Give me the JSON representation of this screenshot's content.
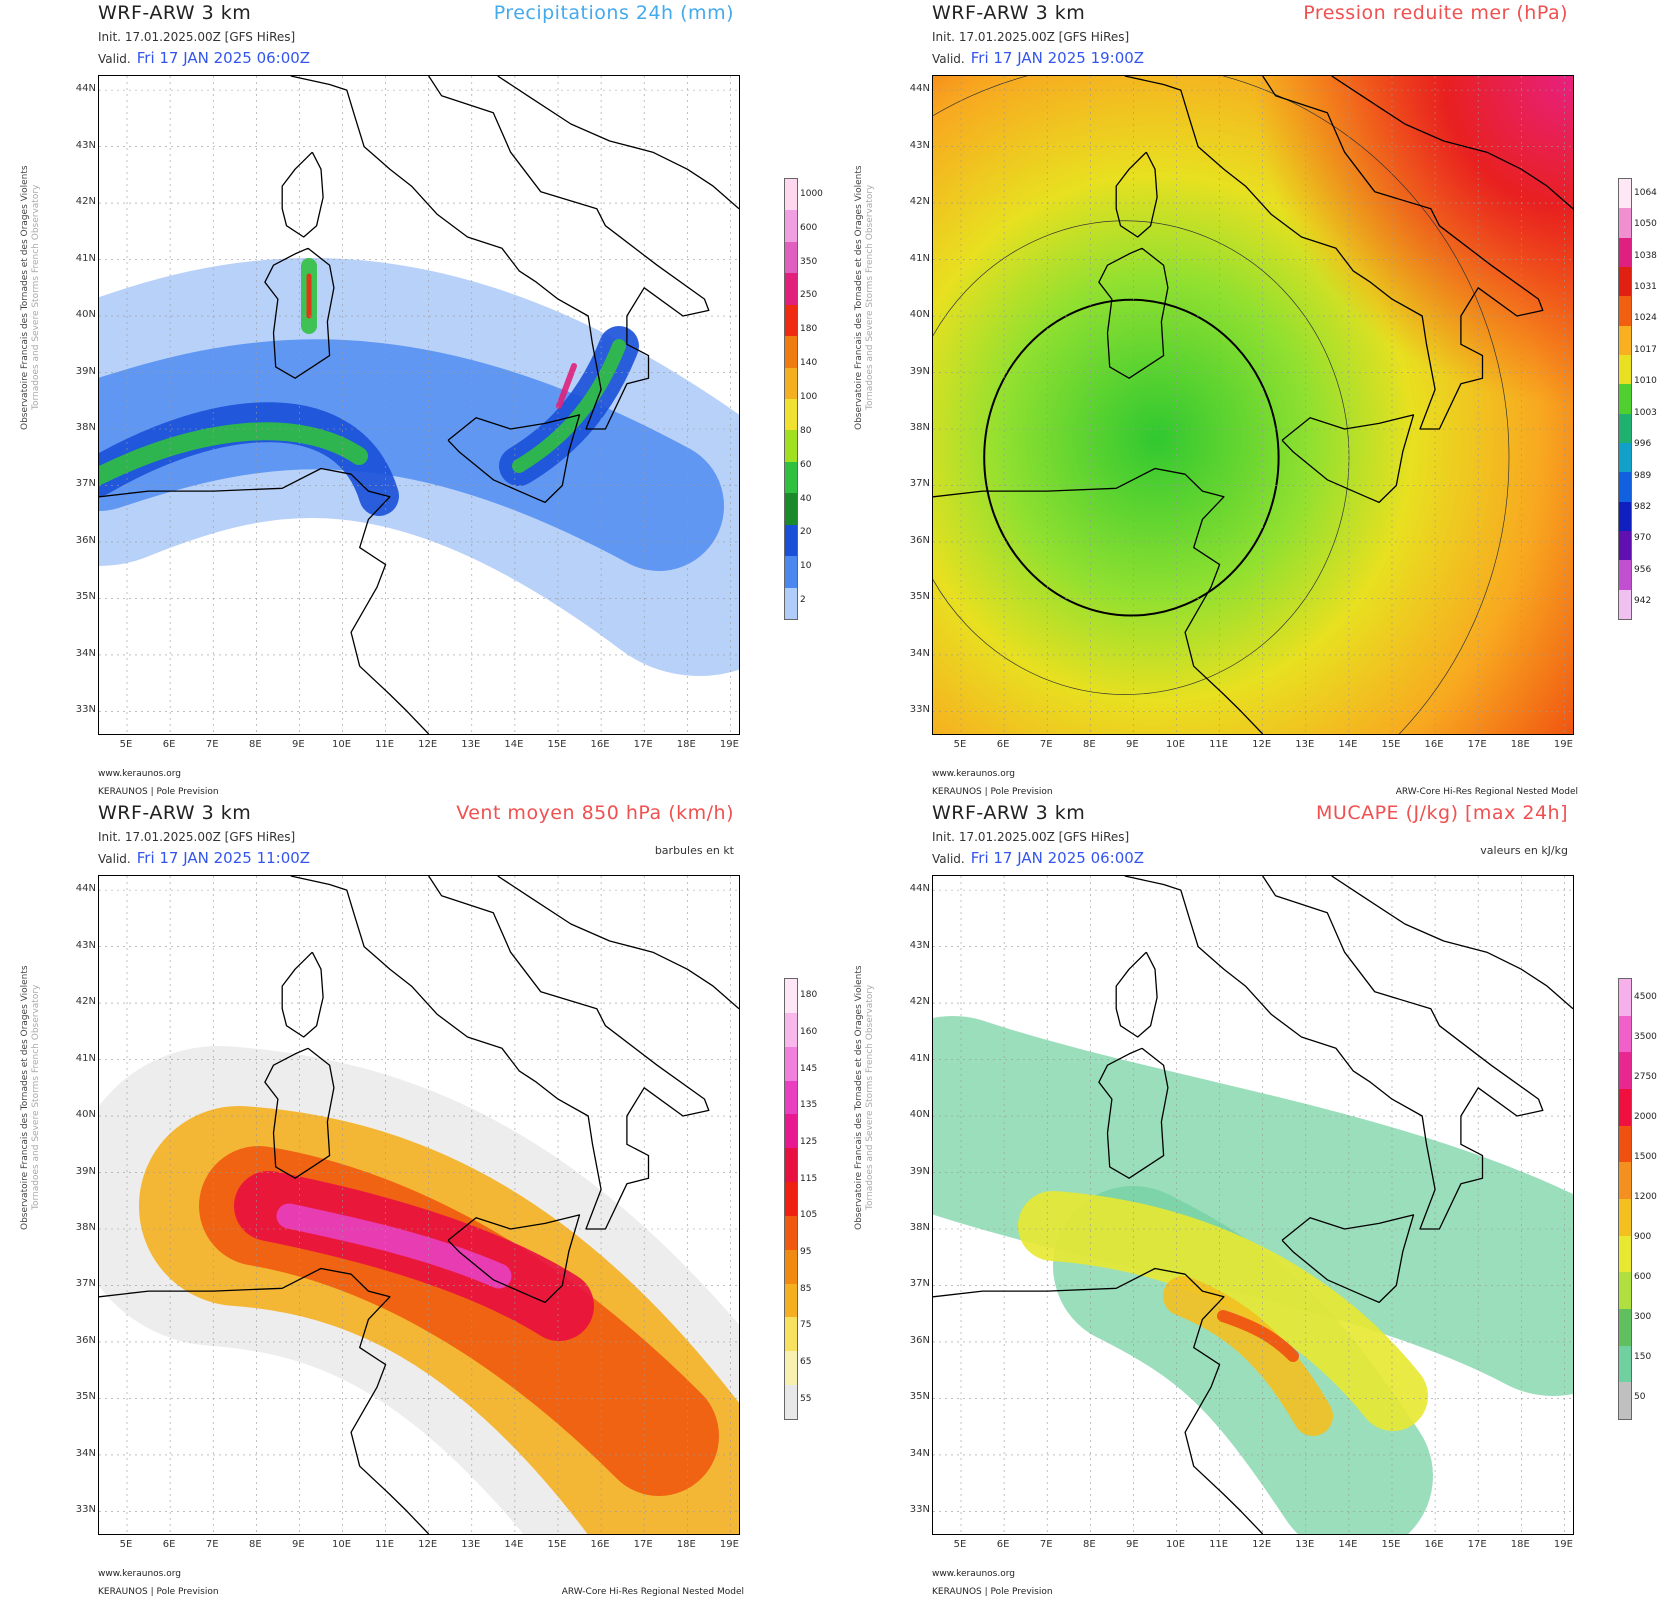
{
  "side_text": {
    "line1": "Observatoire Francais des Tornades et des Orages Violents",
    "line2": "Tornadoes and Severe Storms French Observatory"
  },
  "lat_labels": [
    "44N",
    "43N",
    "42N",
    "41N",
    "40N",
    "39N",
    "38N",
    "37N",
    "36N",
    "35N",
    "34N",
    "33N"
  ],
  "lon_labels": [
    "5E",
    "6E",
    "7E",
    "8E",
    "9E",
    "10E",
    "11E",
    "12E",
    "13E",
    "14E",
    "15E",
    "16E",
    "17E",
    "18E",
    "19E"
  ],
  "panels": [
    {
      "model": "WRF-ARW 3 km",
      "field": "Precipitations 24h (mm)",
      "field_color": "#44aaee",
      "sub": "",
      "init": "Init.   17.01.2025.00Z [GFS HiRes]",
      "valid_label": "Valid.",
      "valid_time": "Fri 17 JAN 2025 06:00Z",
      "credit1": "www.keraunos.org",
      "credit2": "KERAUNOS | Pole Prevision",
      "credit3": "",
      "colorbar": {
        "labels": [
          "1000",
          "600",
          "350",
          "250",
          "180",
          "140",
          "100",
          "80",
          "60",
          "40",
          "20",
          "10",
          "2"
        ],
        "colors": [
          "#ffd8f0",
          "#f0a0e0",
          "#e060c0",
          "#e0207a",
          "#ee2a10",
          "#f07c10",
          "#f4b020",
          "#f0e030",
          "#a0e020",
          "#30c040",
          "#1a8a2a",
          "#1a50d8",
          "#4a88f0",
          "#b0ccf8"
        ]
      }
    },
    {
      "model": "WRF-ARW 3 km",
      "field": "Pression reduite mer (hPa)",
      "field_color": "#f05050",
      "sub": "",
      "init": "Init.   17.01.2025.00Z [GFS HiRes]",
      "valid_label": "Valid.",
      "valid_time": "Fri 17 JAN 2025 19:00Z",
      "credit1": "www.keraunos.org",
      "credit2": "KERAUNOS | Pole Prevision",
      "credit3": "ARW-Core Hi-Res Regional Nested Model",
      "colorbar": {
        "labels": [
          "1064",
          "1050",
          "1038",
          "1031",
          "1024",
          "1017",
          "1010",
          "1003",
          "996",
          "989",
          "982",
          "970",
          "956",
          "942"
        ],
        "colors": [
          "#ffe8f6",
          "#f090d0",
          "#e02080",
          "#e02010",
          "#f06010",
          "#f8b020",
          "#e8e020",
          "#50d030",
          "#20b070",
          "#10a0c8",
          "#1060e0",
          "#1020c0",
          "#6010b0",
          "#c050d0",
          "#f0c0f0"
        ]
      }
    },
    {
      "model": "WRF-ARW 3 km",
      "field": "Vent moyen 850 hPa (km/h)",
      "field_color": "#f05050",
      "sub": "barbules en kt",
      "init": "Init.   17.01.2025.00Z [GFS HiRes]",
      "valid_label": "Valid.",
      "valid_time": "Fri 17 JAN 2025 11:00Z",
      "credit1": "www.keraunos.org",
      "credit2": "KERAUNOS | Pole Prevision",
      "credit3": "ARW-Core Hi-Res Regional Nested Model",
      "colorbar": {
        "labels": [
          "180",
          "160",
          "145",
          "135",
          "125",
          "115",
          "105",
          "95",
          "85",
          "75",
          "65",
          "55"
        ],
        "colors": [
          "#ffe6f6",
          "#f8b8ec",
          "#f080dc",
          "#e840c0",
          "#e81890",
          "#e81040",
          "#f02010",
          "#f05a10",
          "#f08a10",
          "#f4b020",
          "#f8e060",
          "#f8f0b0",
          "#e8e8e8"
        ]
      }
    },
    {
      "model": "WRF-ARW 3 km",
      "field": "MUCAPE (J/kg) [max 24h]",
      "field_color": "#f05050",
      "sub": "valeurs en kJ/kg",
      "init": "Init.   17.01.2025.00Z [GFS HiRes]",
      "valid_label": "Valid.",
      "valid_time": "Fri 17 JAN 2025 06:00Z",
      "credit1": "www.keraunos.org",
      "credit2": "KERAUNOS | Pole Prevision",
      "credit3": "",
      "colorbar": {
        "labels": [
          "4500",
          "3500",
          "2750",
          "2000",
          "1500",
          "1200",
          "900",
          "600",
          "300",
          "150",
          "50"
        ],
        "colors": [
          "#f8b0ec",
          "#f060c8",
          "#e82890",
          "#f01040",
          "#f05010",
          "#f49020",
          "#f4c020",
          "#e8e830",
          "#b0e040",
          "#60c060",
          "#70d0a0",
          "#c0c0c0"
        ]
      }
    }
  ]
}
